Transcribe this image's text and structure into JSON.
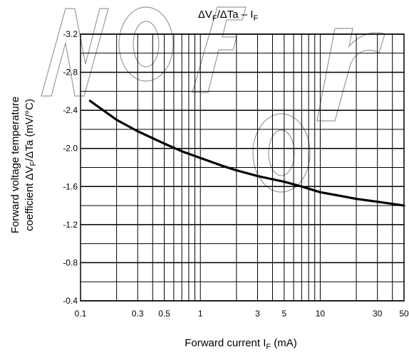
{
  "chart_data": {
    "type": "line",
    "title": "ΔVF/ΔTa – IF",
    "title_parts": {
      "a": "ΔV",
      "b": "F",
      "c": "/ΔTa – I",
      "d": "F"
    },
    "xlabel": "Forward current   IF   (mA)",
    "xlabel_parts": {
      "a": "Forward current   I",
      "b": "F",
      "c": "   (mA)"
    },
    "ylabel": "Forward voltage temperature coefficient   ΔVF/ΔTa   (mV/°C)",
    "ylabel_parts": {
      "line1": "Forward voltage temperature",
      "line2_a": "coefficient    ΔV",
      "line2_b": "F",
      "line2_c": "/ΔTa   (mV/°C)"
    },
    "x_scale": "log",
    "xlim": [
      0.1,
      50
    ],
    "ylim": [
      -0.4,
      -3.2
    ],
    "y_inverted": true,
    "x_ticks": [
      0.1,
      0.3,
      0.5,
      1,
      3,
      5,
      10,
      30,
      50
    ],
    "x_tick_labels": [
      "0.1",
      "0.3",
      "0.5",
      "1",
      "3",
      "5",
      "10",
      "30",
      "50"
    ],
    "y_ticks": [
      -3.2,
      -2.8,
      -2.4,
      -2.0,
      -1.6,
      -1.2,
      -0.8,
      -0.4
    ],
    "y_tick_labels": [
      "-3.2",
      "-2.8",
      "-2.4",
      "-2.0",
      "-1.6",
      "-1.2",
      "-0.8",
      "-0.4"
    ],
    "grid": true,
    "series": [
      {
        "x": [
          0.12,
          0.2,
          0.3,
          0.5,
          0.7,
          1,
          1.5,
          2,
          3,
          5,
          7,
          10,
          15,
          20,
          30,
          50
        ],
        "y": [
          -2.5,
          -2.3,
          -2.18,
          -2.05,
          -1.97,
          -1.9,
          -1.82,
          -1.77,
          -1.71,
          -1.65,
          -1.6,
          -1.54,
          -1.5,
          -1.47,
          -1.44,
          -1.4
        ]
      }
    ],
    "colors": {
      "line": "#000000",
      "grid": "#000000",
      "watermark": "#9a9a9a"
    }
  }
}
